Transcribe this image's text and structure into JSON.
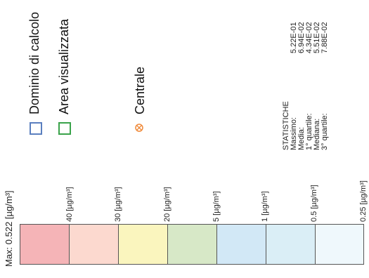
{
  "legend": {
    "domain_label": "Dominio di calcolo",
    "domain_color": "#5b7fbf",
    "area_label": "Area visualizzata",
    "area_color": "#3aa34a",
    "plant_label": "Centrale",
    "plant_color": "#f08a3a"
  },
  "stats": {
    "title": "STATISTICHE",
    "labels": [
      "Massimo:",
      "Media:",
      "1° quartile:",
      "Mediana:",
      "3° quartile:"
    ],
    "values": [
      "5.22E-01",
      "6.94E-02",
      "4.34E-02",
      "5.51E-02",
      "7.88E-02"
    ]
  },
  "scale": {
    "max_label": "Max: 0.522 [µg/m³]",
    "thresholds": [
      "40 [µg/m³]",
      "30 [µg/m³]",
      "20 [µg/m³]",
      "5 [µg/m³]",
      "1 [µg/m³]",
      "0.5 [µg/m³]",
      "0.25 [µg/m³]"
    ],
    "colors": [
      "#f5b4b7",
      "#fcd9cf",
      "#faf5be",
      "#d7e8c7",
      "#d2e8f6",
      "#daeef6",
      "#eff8fc"
    ]
  }
}
